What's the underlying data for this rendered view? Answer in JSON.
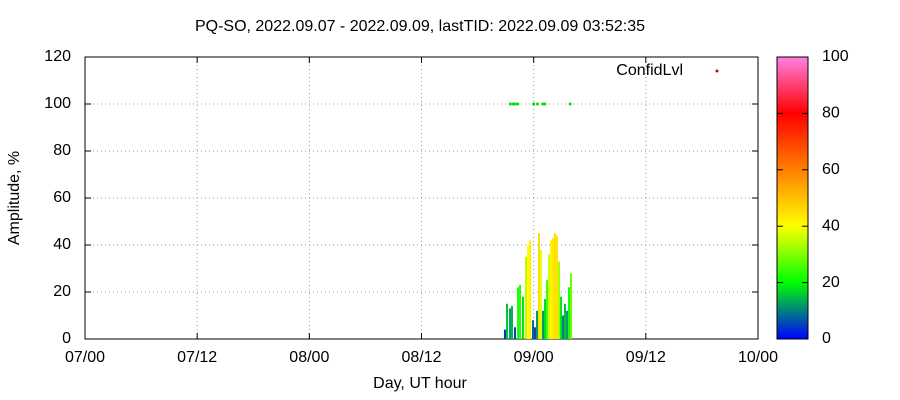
{
  "chart_data": {
    "type": "impulse",
    "title": "PQ-SO, 2022.09.07 - 2022.09.09, lastTID: 2022.09.09 03:52:35",
    "xlabel": "Day, UT hour",
    "ylabel": "Amplitude, %",
    "xlim": [
      0,
      72
    ],
    "xticks": [
      {
        "value": 0,
        "label": "07/00"
      },
      {
        "value": 12,
        "label": "07/12"
      },
      {
        "value": 24,
        "label": "08/00"
      },
      {
        "value": 36,
        "label": "08/12"
      },
      {
        "value": 48,
        "label": "09/00"
      },
      {
        "value": 60,
        "label": "09/12"
      },
      {
        "value": 72,
        "label": "10/00"
      }
    ],
    "ylim": [
      0,
      120
    ],
    "yticks": [
      0,
      20,
      40,
      60,
      80,
      100,
      120
    ],
    "grid": true,
    "amplitude": {
      "x": [
        44.93,
        45.15,
        45.47,
        45.68,
        46.0,
        46.33,
        46.54,
        46.86,
        47.18,
        47.4,
        47.61,
        47.93,
        48.14,
        48.36,
        48.57,
        48.79,
        49.0,
        49.21,
        49.43,
        49.64,
        49.86,
        50.07,
        50.28,
        50.5,
        50.71,
        50.93,
        51.14,
        51.35,
        51.57,
        51.78,
        52.0
      ],
      "values": [
        4,
        15,
        13,
        14,
        5,
        22,
        23,
        18,
        35,
        40,
        42,
        8,
        5,
        12,
        45,
        38,
        12,
        17,
        25,
        36,
        42,
        43,
        45,
        44,
        33,
        18,
        10,
        15,
        12,
        22,
        28
      ]
    },
    "confidence": {
      "name": "ConfidLvl",
      "color": "#00dd00",
      "key_color": "#cc0000",
      "x": [
        45.5,
        45.8,
        46.0,
        46.3,
        48.0,
        48.4,
        49.0,
        49.2,
        51.9
      ],
      "values": [
        100,
        100,
        100,
        100,
        100,
        100,
        100,
        100,
        100
      ]
    },
    "colorbar": {
      "lim": [
        0,
        100
      ],
      "ticks": [
        0,
        20,
        40,
        60,
        80,
        100
      ],
      "palette": [
        "#0000ff",
        "#00ff00",
        "#ffff00",
        "#ff8000",
        "#ff0000",
        "#ff80e0"
      ]
    }
  }
}
